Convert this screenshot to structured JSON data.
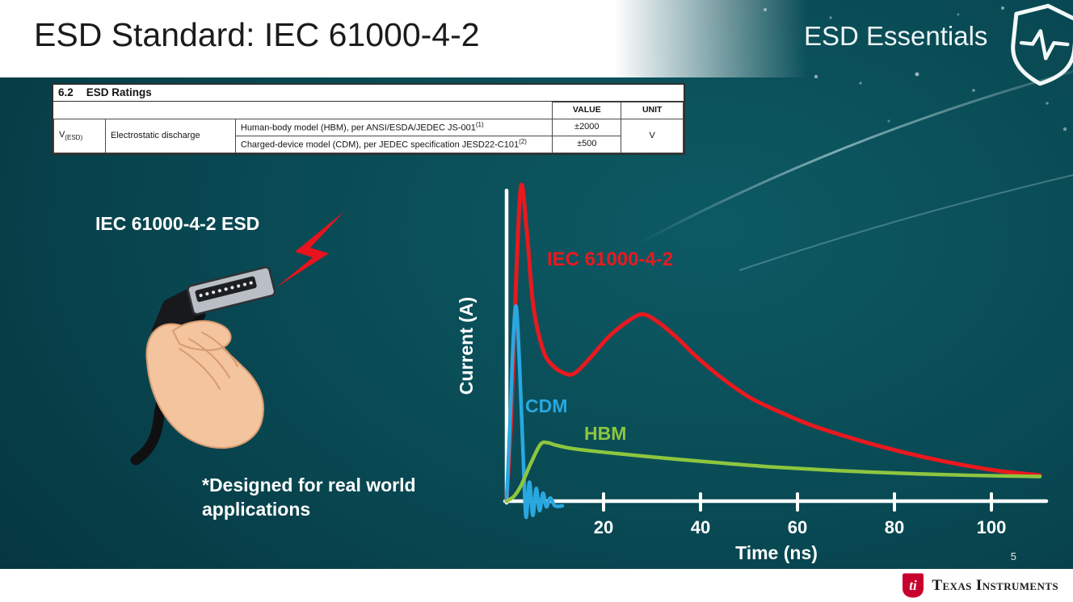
{
  "colors": {
    "background_teal": "#084650",
    "accent_red": "#e8131d",
    "iec_red": "#e8191f",
    "cdm_blue": "#29a8e0",
    "hbm_green": "#8dc63f",
    "ti_red": "#c8002d"
  },
  "slide": {
    "title": "ESD Standard: IEC 61000-4-2",
    "brand": "ESD Essentials",
    "page_number": "5",
    "footer_logo": "Texas Instruments"
  },
  "ratings_table": {
    "section": "6.2",
    "section_title": "ESD Ratings",
    "columns": {
      "value": "VALUE",
      "unit": "UNIT"
    },
    "param_symbol": "V",
    "param_symbol_sub": "(ESD)",
    "param_name": "Electrostatic discharge",
    "rows": [
      {
        "description": "Human-body model (HBM), per ANSI/ESDA/JEDEC JS-001",
        "ref": "(1)",
        "value": "±2000"
      },
      {
        "description": "Charged-device model (CDM), per JEDEC specification JESD22-C101",
        "ref": "(2)",
        "value": "±500"
      }
    ],
    "unit": "V"
  },
  "left": {
    "caption": "IEC 61000-4-2 ESD",
    "note_line1": "*Designed for real world",
    "note_line2": "applications"
  },
  "chart_data": {
    "type": "line",
    "title": "",
    "xlabel": "Time (ns)",
    "ylabel": "Current (A)",
    "x_ticks": [
      20,
      40,
      60,
      80,
      100
    ],
    "xlim": [
      0,
      110
    ],
    "ylim": [
      -0.08,
      1.05
    ],
    "y_ticks": [],
    "grid": false,
    "legend": "inline-labels",
    "y_note": "no numeric y-axis labels shown; amplitudes normalized to IEC 61000-4-2 peak = 1.0",
    "series": [
      {
        "name": "IEC 61000-4-2",
        "color": "#e8191f",
        "points": [
          [
            0,
            0
          ],
          [
            1,
            0.28
          ],
          [
            2,
            0.72
          ],
          [
            3,
            1.0
          ],
          [
            4.2,
            0.85
          ],
          [
            5.5,
            0.62
          ],
          [
            7.5,
            0.48
          ],
          [
            9.5,
            0.43
          ],
          [
            12,
            0.405
          ],
          [
            14,
            0.405
          ],
          [
            17,
            0.45
          ],
          [
            21,
            0.52
          ],
          [
            25,
            0.57
          ],
          [
            28,
            0.592
          ],
          [
            31,
            0.57
          ],
          [
            35,
            0.52
          ],
          [
            39,
            0.46
          ],
          [
            44,
            0.395
          ],
          [
            50,
            0.33
          ],
          [
            56,
            0.285
          ],
          [
            63,
            0.24
          ],
          [
            70,
            0.205
          ],
          [
            78,
            0.17
          ],
          [
            86,
            0.14
          ],
          [
            94,
            0.115
          ],
          [
            102,
            0.095
          ],
          [
            110,
            0.082
          ]
        ]
      },
      {
        "name": "CDM",
        "color": "#29a8e0",
        "points": [
          [
            0,
            0
          ],
          [
            0.7,
            0.25
          ],
          [
            1.4,
            0.52
          ],
          [
            2,
            0.615
          ],
          [
            2.7,
            0.42
          ],
          [
            3.4,
            0.15
          ],
          [
            4,
            -0.05
          ],
          [
            4.7,
            0.06
          ],
          [
            5.4,
            -0.045
          ],
          [
            6.1,
            0.04
          ],
          [
            6.8,
            -0.03
          ],
          [
            7.5,
            0.025
          ],
          [
            8.2,
            -0.018
          ],
          [
            9,
            0.01
          ],
          [
            10,
            -0.015
          ],
          [
            11.5,
            -0.015
          ]
        ]
      },
      {
        "name": "HBM",
        "color": "#8dc63f",
        "points": [
          [
            0,
            0
          ],
          [
            1.5,
            0.015
          ],
          [
            3,
            0.05
          ],
          [
            5,
            0.12
          ],
          [
            7,
            0.18
          ],
          [
            8.5,
            0.185
          ],
          [
            10,
            0.178
          ],
          [
            13,
            0.168
          ],
          [
            17,
            0.16
          ],
          [
            22,
            0.152
          ],
          [
            28,
            0.143
          ],
          [
            35,
            0.133
          ],
          [
            45,
            0.12
          ],
          [
            55,
            0.108
          ],
          [
            68,
            0.097
          ],
          [
            82,
            0.088
          ],
          [
            95,
            0.082
          ],
          [
            110,
            0.078
          ]
        ]
      }
    ]
  }
}
